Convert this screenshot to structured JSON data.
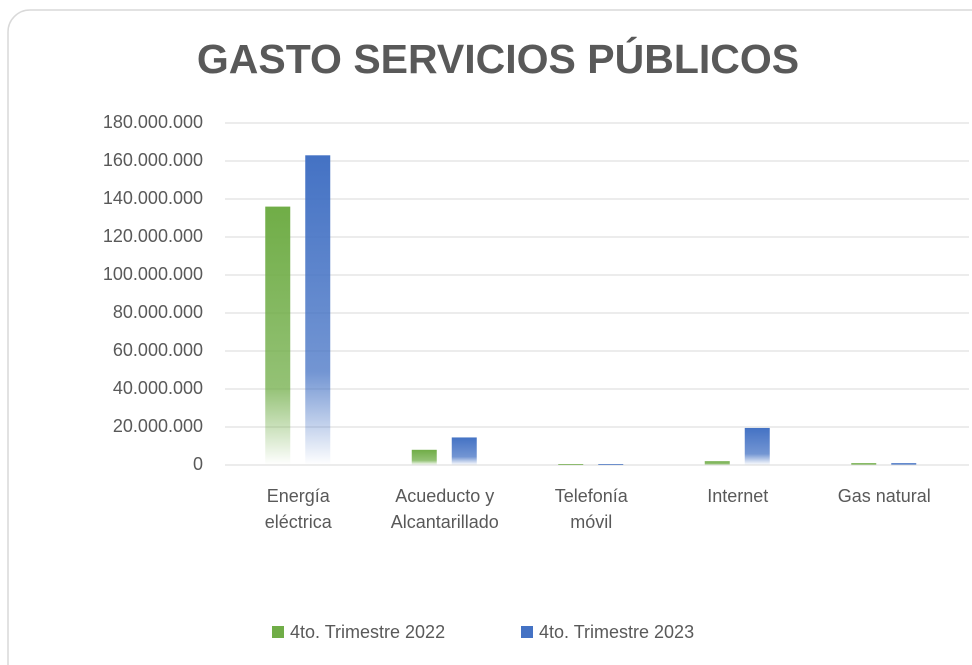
{
  "chart_data": {
    "type": "bar",
    "title": "GASTO SERVICIOS PÚBLICOS",
    "categories": [
      "Energía\neléctrica",
      "Acueducto y\nAlcantarillado",
      "Telefonía\nmóvil",
      "Internet",
      "Gas natural"
    ],
    "series": [
      {
        "name": "4to. Trimestre 2022",
        "color": "#70ad47",
        "values": [
          136000000,
          8000000,
          500000,
          2000000,
          1000000
        ]
      },
      {
        "name": "4to. Trimestre 2023",
        "color": "#4472c4",
        "values": [
          163000000,
          14500000,
          500000,
          19500000,
          1000000
        ]
      }
    ],
    "ylim": [
      0,
      180000000
    ],
    "yticks": [
      0,
      {
        "value": 20000000,
        "label": "20.000.000"
      },
      {
        "value": 40000000,
        "label": "40.000.000"
      },
      {
        "value": 60000000,
        "label": "60.000.000"
      },
      {
        "value": 80000000,
        "label": "80.000.000"
      },
      {
        "value": 100000000,
        "label": "100.000.000"
      },
      {
        "value": 120000000,
        "label": "120.000.000"
      },
      {
        "value": 140000000,
        "label": "140.000.000"
      },
      {
        "value": 160000000,
        "label": "160.000.000"
      },
      {
        "value": 180000000,
        "label": "180.000.000"
      }
    ],
    "grid": true,
    "legend": "bottom"
  }
}
